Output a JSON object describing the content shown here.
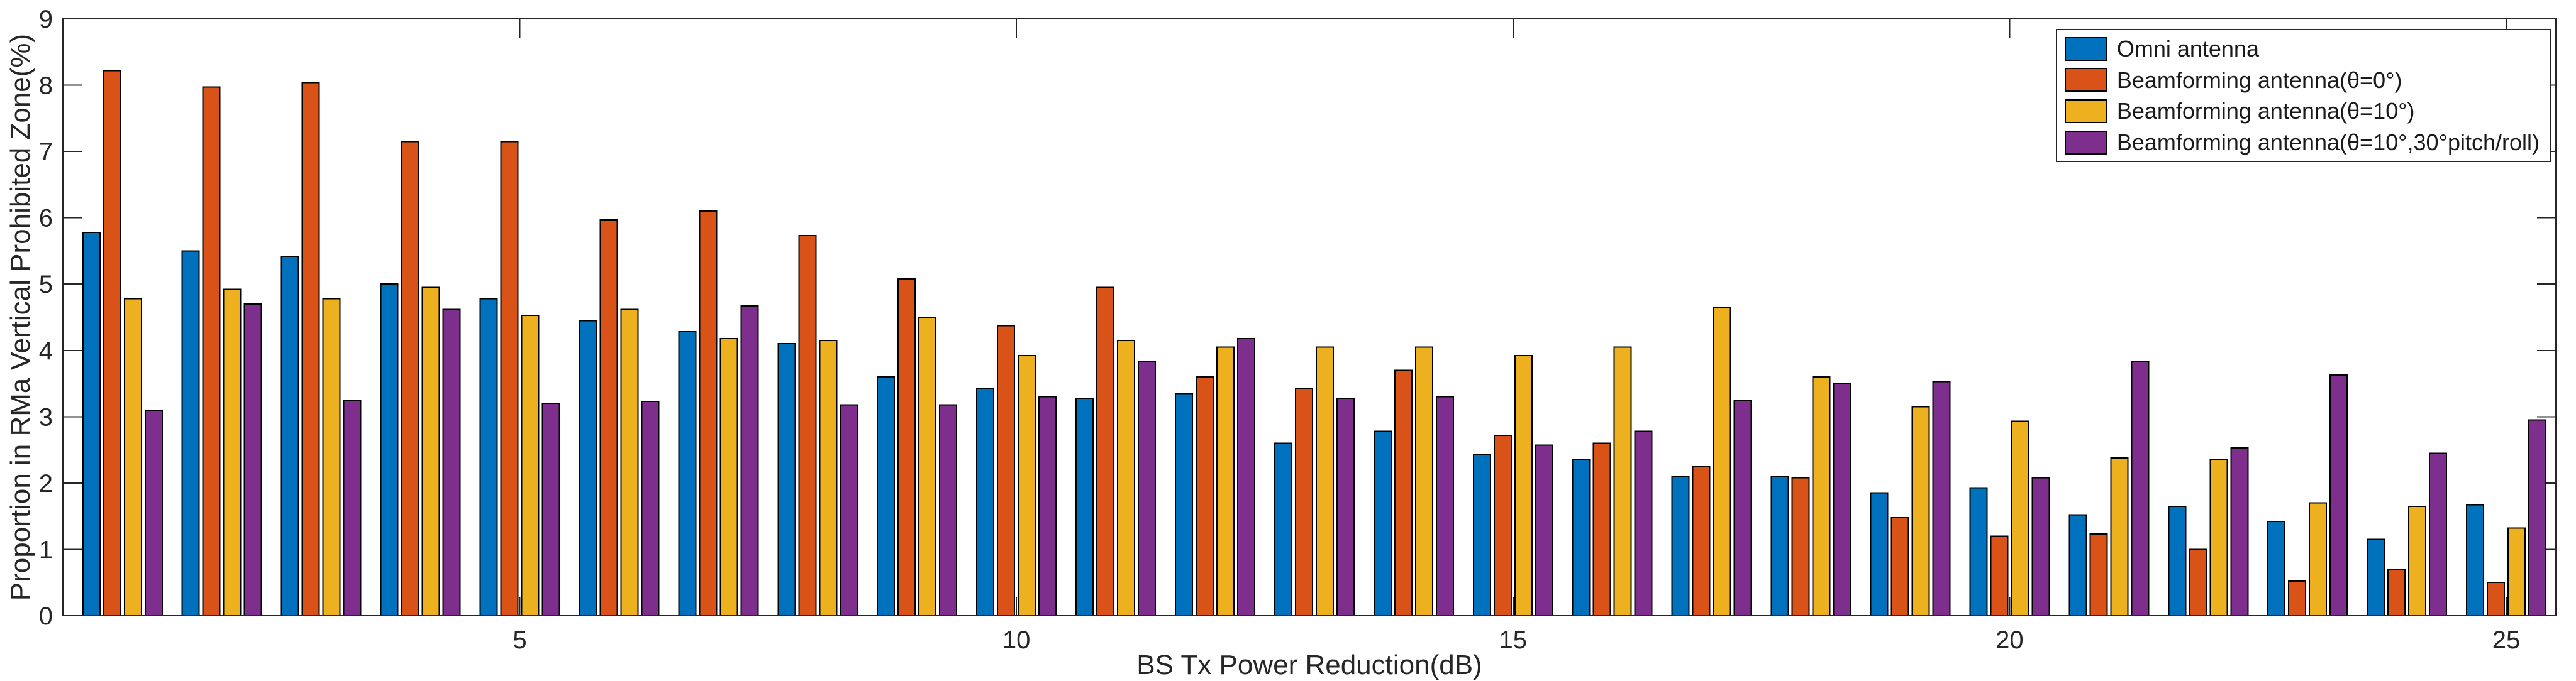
{
  "chart_data": {
    "type": "bar",
    "title": "",
    "xlabel": "BS Tx Power Reduction(dB)",
    "ylabel": "Proportion in RMa Vertical Prohibited Zone(%)",
    "x": [
      1,
      2,
      3,
      4,
      5,
      6,
      7,
      8,
      9,
      10,
      11,
      12,
      13,
      14,
      15,
      16,
      17,
      18,
      19,
      20,
      21,
      22,
      23,
      24,
      25
    ],
    "xlim": [
      0.4,
      25.5
    ],
    "ylim": [
      0,
      9
    ],
    "xticks": [
      5,
      10,
      15,
      20,
      25
    ],
    "yticks": [
      0,
      1,
      2,
      3,
      4,
      5,
      6,
      7,
      8,
      9
    ],
    "grid": false,
    "legend_position": "top-right",
    "axis_color": "#262626",
    "bar_edge_color": "#000000",
    "series": [
      {
        "name": "Omni antenna",
        "color": "#0072BD",
        "values": [
          5.78,
          5.5,
          5.42,
          5.0,
          4.78,
          4.45,
          4.28,
          4.1,
          3.6,
          3.43,
          3.28,
          3.35,
          2.6,
          2.78,
          2.43,
          2.35,
          2.1,
          2.1,
          1.85,
          1.93,
          1.52,
          1.65,
          1.42,
          1.15,
          1.67
        ]
      },
      {
        "name": "Beamforming antenna(θ=0°)",
        "color": "#D95319",
        "values": [
          8.22,
          7.97,
          8.04,
          7.15,
          7.15,
          5.97,
          6.1,
          5.73,
          5.08,
          4.37,
          4.95,
          3.6,
          3.43,
          3.7,
          2.72,
          2.6,
          2.25,
          2.08,
          1.48,
          1.2,
          1.23,
          1.0,
          0.52,
          0.7,
          0.5
        ]
      },
      {
        "name": "Beamforming antenna(θ=10°)",
        "color": "#EDB120",
        "values": [
          4.78,
          4.92,
          4.78,
          4.95,
          4.53,
          4.62,
          4.18,
          4.15,
          4.5,
          3.92,
          4.15,
          4.05,
          4.05,
          4.05,
          3.92,
          4.05,
          4.65,
          3.6,
          3.15,
          2.93,
          2.38,
          2.35,
          1.7,
          1.65,
          1.32
        ]
      },
      {
        "name": "Beamforming antenna(θ=10°,30°pitch/roll)",
        "color": "#7E2F8E",
        "values": [
          3.1,
          4.7,
          3.25,
          4.62,
          3.2,
          3.23,
          4.67,
          3.18,
          3.18,
          3.3,
          3.83,
          4.18,
          3.28,
          3.3,
          2.57,
          2.78,
          3.25,
          3.5,
          3.53,
          2.08,
          3.83,
          2.53,
          3.63,
          2.45,
          2.95
        ]
      }
    ]
  }
}
